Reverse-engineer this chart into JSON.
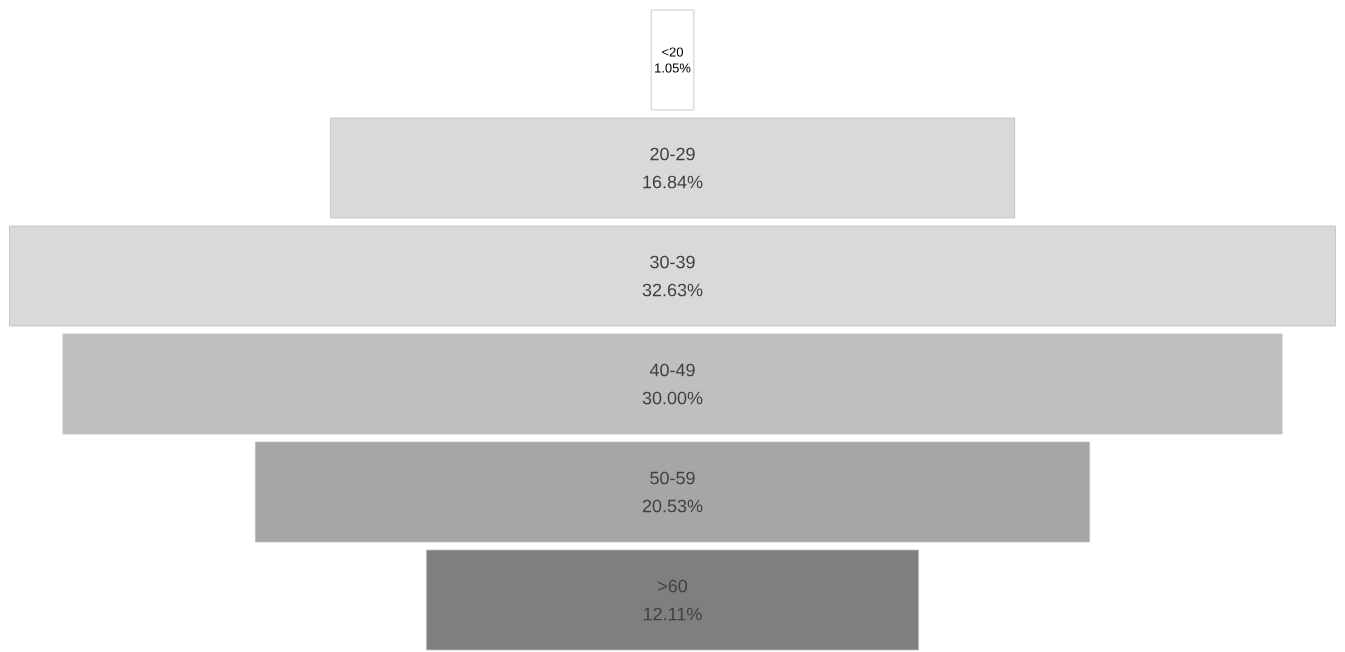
{
  "chart_data": {
    "type": "other",
    "categories": [
      "<20",
      "20-29",
      "30-39",
      "40-49",
      "50-59",
      ">60"
    ],
    "values": [
      1.05,
      16.84,
      32.63,
      30.0,
      20.53,
      12.11
    ],
    "value_labels": [
      "1.05%",
      "16.84%",
      "32.63%",
      "30.00%",
      "20.53%",
      "12.11%"
    ],
    "colors": [
      "#ffffff",
      "#d9d9d9",
      "#d9d9d9",
      "#bfbfbf",
      "#a6a6a6",
      "#7f7f7f"
    ]
  }
}
